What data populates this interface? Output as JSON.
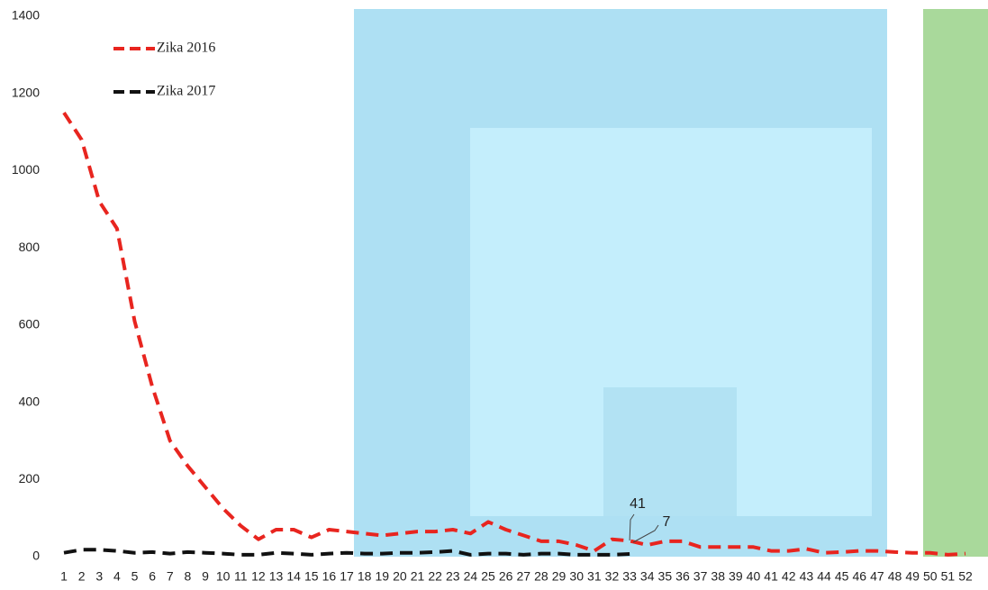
{
  "chart_data": {
    "type": "line",
    "categories": [
      "1",
      "2",
      "3",
      "4",
      "5",
      "6",
      "7",
      "8",
      "9",
      "10",
      "11",
      "12",
      "13",
      "14",
      "15",
      "16",
      "17",
      "18",
      "19",
      "20",
      "21",
      "22",
      "23",
      "24",
      "25",
      "26",
      "27",
      "28",
      "29",
      "30",
      "31",
      "32",
      "33",
      "34",
      "35",
      "36",
      "37",
      "38",
      "39",
      "40",
      "41",
      "42",
      "43",
      "44",
      "45",
      "46",
      "47",
      "48",
      "49",
      "50",
      "51",
      "52"
    ],
    "series": [
      {
        "name": "Zika 2016",
        "color": "#e8251f",
        "values": [
          1150,
          1080,
          920,
          850,
          610,
          440,
          300,
          235,
          180,
          125,
          80,
          45,
          70,
          70,
          50,
          70,
          65,
          60,
          55,
          60,
          65,
          65,
          70,
          60,
          90,
          70,
          55,
          40,
          40,
          30,
          15,
          45,
          41,
          30,
          40,
          40,
          25,
          25,
          25,
          25,
          15,
          15,
          20,
          10,
          12,
          15,
          15,
          12,
          10,
          10,
          5,
          8
        ]
      },
      {
        "name": "Zika 2017",
        "color": "#111111",
        "values": [
          10,
          18,
          18,
          15,
          10,
          12,
          8,
          12,
          10,
          8,
          5,
          5,
          10,
          8,
          5,
          8,
          10,
          8,
          8,
          10,
          10,
          12,
          15,
          5,
          8,
          8,
          5,
          8,
          8,
          5,
          5,
          5,
          7,
          null,
          null,
          null,
          null,
          null,
          null,
          null,
          null,
          null,
          null,
          null,
          null,
          null,
          null,
          null,
          null,
          null,
          null,
          null
        ]
      }
    ],
    "annotations": [
      {
        "text": "41"
      },
      {
        "text": "7"
      }
    ],
    "ylim": [
      0,
      1400
    ],
    "yticks": [
      0,
      200,
      400,
      600,
      800,
      1000,
      1200,
      1400
    ],
    "grid": false,
    "legend": "upper-left"
  }
}
